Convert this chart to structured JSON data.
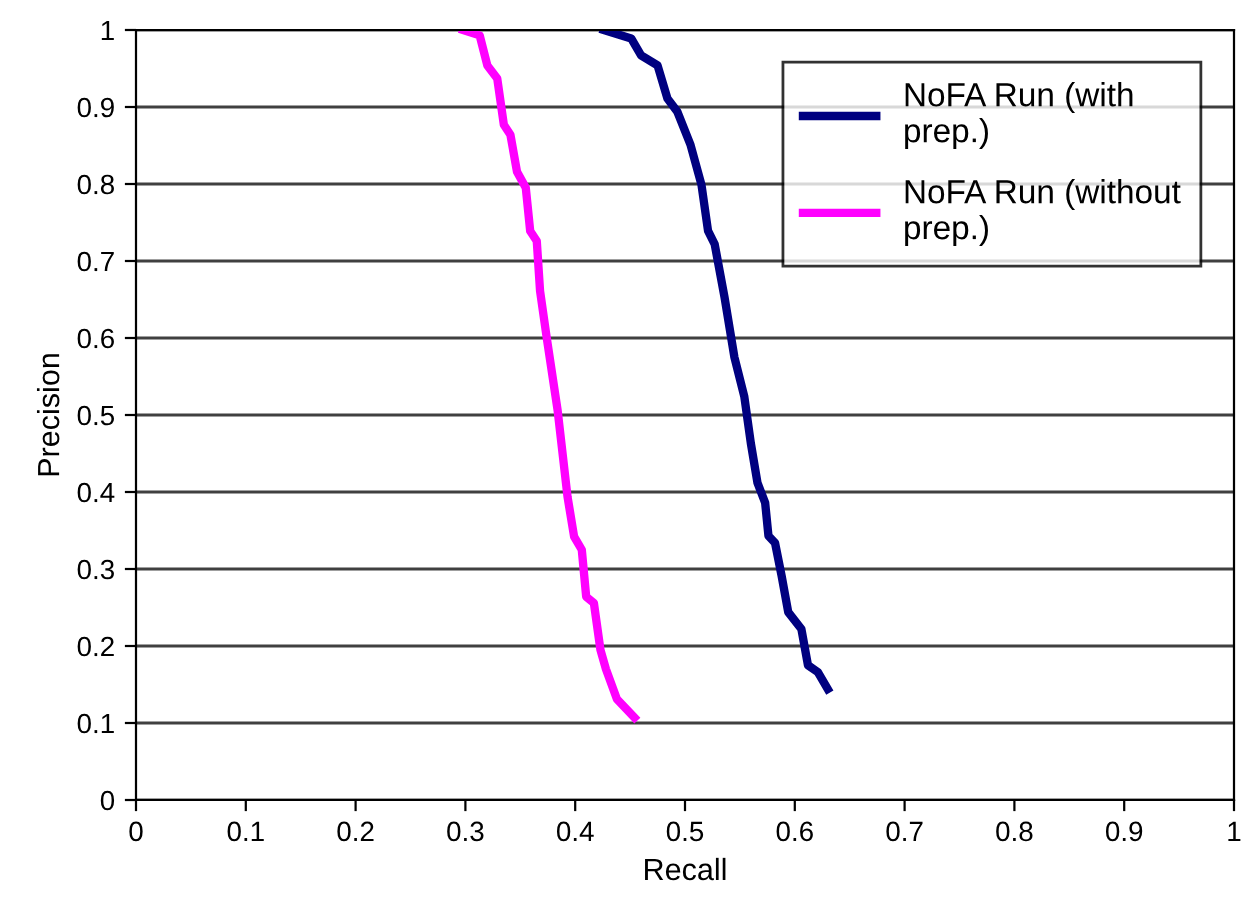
{
  "chart_data": {
    "type": "line",
    "xlabel": "Recall",
    "ylabel": "Precision",
    "xlim": [
      0,
      1
    ],
    "ylim": [
      0,
      1
    ],
    "xticks": [
      0,
      0.1,
      0.2,
      0.3,
      0.4,
      0.5,
      0.6,
      0.7,
      0.8,
      0.9,
      1
    ],
    "yticks": [
      0,
      0.1,
      0.2,
      0.3,
      0.4,
      0.5,
      0.6,
      0.7,
      0.8,
      0.9,
      1
    ],
    "grid": "y",
    "legend": "top right",
    "marker": "none",
    "line_style": "solid",
    "series": [
      {
        "name": "NoFA Run (with prep.)",
        "color": "#000080",
        "x": [
          0.426,
          0.451,
          0.46,
          0.475,
          0.484,
          0.493,
          0.505,
          0.515,
          0.521,
          0.527,
          0.536,
          0.545,
          0.554,
          0.56,
          0.566,
          0.573,
          0.576,
          0.582,
          0.588,
          0.594,
          0.606,
          0.612,
          0.621,
          0.63
        ],
        "values": [
          1.0,
          0.989,
          0.967,
          0.954,
          0.911,
          0.894,
          0.851,
          0.799,
          0.739,
          0.722,
          0.653,
          0.575,
          0.524,
          0.463,
          0.412,
          0.386,
          0.343,
          0.334,
          0.291,
          0.244,
          0.222,
          0.175,
          0.166,
          0.144
        ]
      },
      {
        "name": "NoFA Run (without prep.)",
        "color": "#ff00ff",
        "x": [
          0.298,
          0.313,
          0.32,
          0.329,
          0.335,
          0.341,
          0.347,
          0.355,
          0.359,
          0.365,
          0.368,
          0.374,
          0.384,
          0.393,
          0.399,
          0.406,
          0.41,
          0.417,
          0.423,
          0.428,
          0.438,
          0.454
        ],
        "values": [
          1.0,
          0.993,
          0.954,
          0.937,
          0.877,
          0.864,
          0.816,
          0.795,
          0.739,
          0.726,
          0.661,
          0.601,
          0.506,
          0.394,
          0.342,
          0.325,
          0.264,
          0.256,
          0.195,
          0.17,
          0.131,
          0.107
        ]
      }
    ]
  }
}
